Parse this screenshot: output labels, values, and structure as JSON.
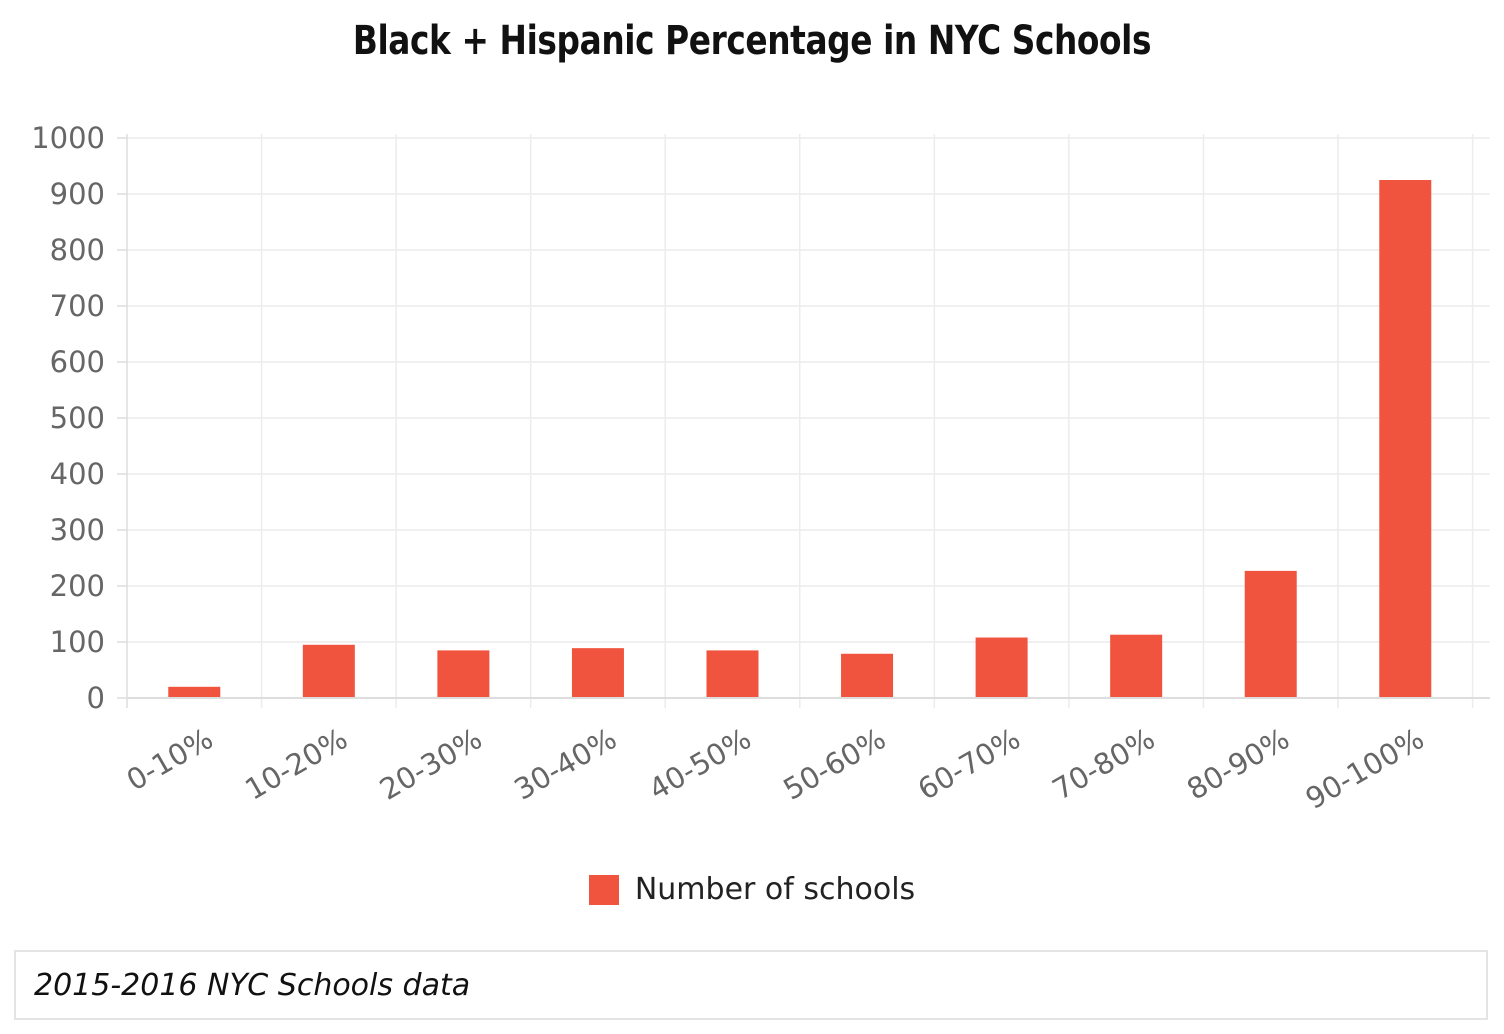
{
  "chart_data": {
    "type": "bar",
    "title": "Black + Hispanic Percentage in NYC Schools",
    "categories": [
      "0-10%",
      "10-20%",
      "20-30%",
      "30-40%",
      "40-50%",
      "50-60%",
      "60-70%",
      "70-80%",
      "80-90%",
      "90-100%"
    ],
    "series": [
      {
        "name": "Number of schools",
        "color": "#f0533e",
        "values": [
          20,
          95,
          85,
          89,
          85,
          79,
          108,
          113,
          227,
          925
        ]
      }
    ],
    "ylim": [
      0,
      1000
    ],
    "yticks": [
      "0",
      "100",
      "200",
      "300",
      "400",
      "500",
      "600",
      "700",
      "800",
      "900",
      "1000"
    ],
    "grid": true,
    "legend": "bottom-center"
  },
  "footer": {
    "caption": "2015-2016 NYC Schools data"
  }
}
